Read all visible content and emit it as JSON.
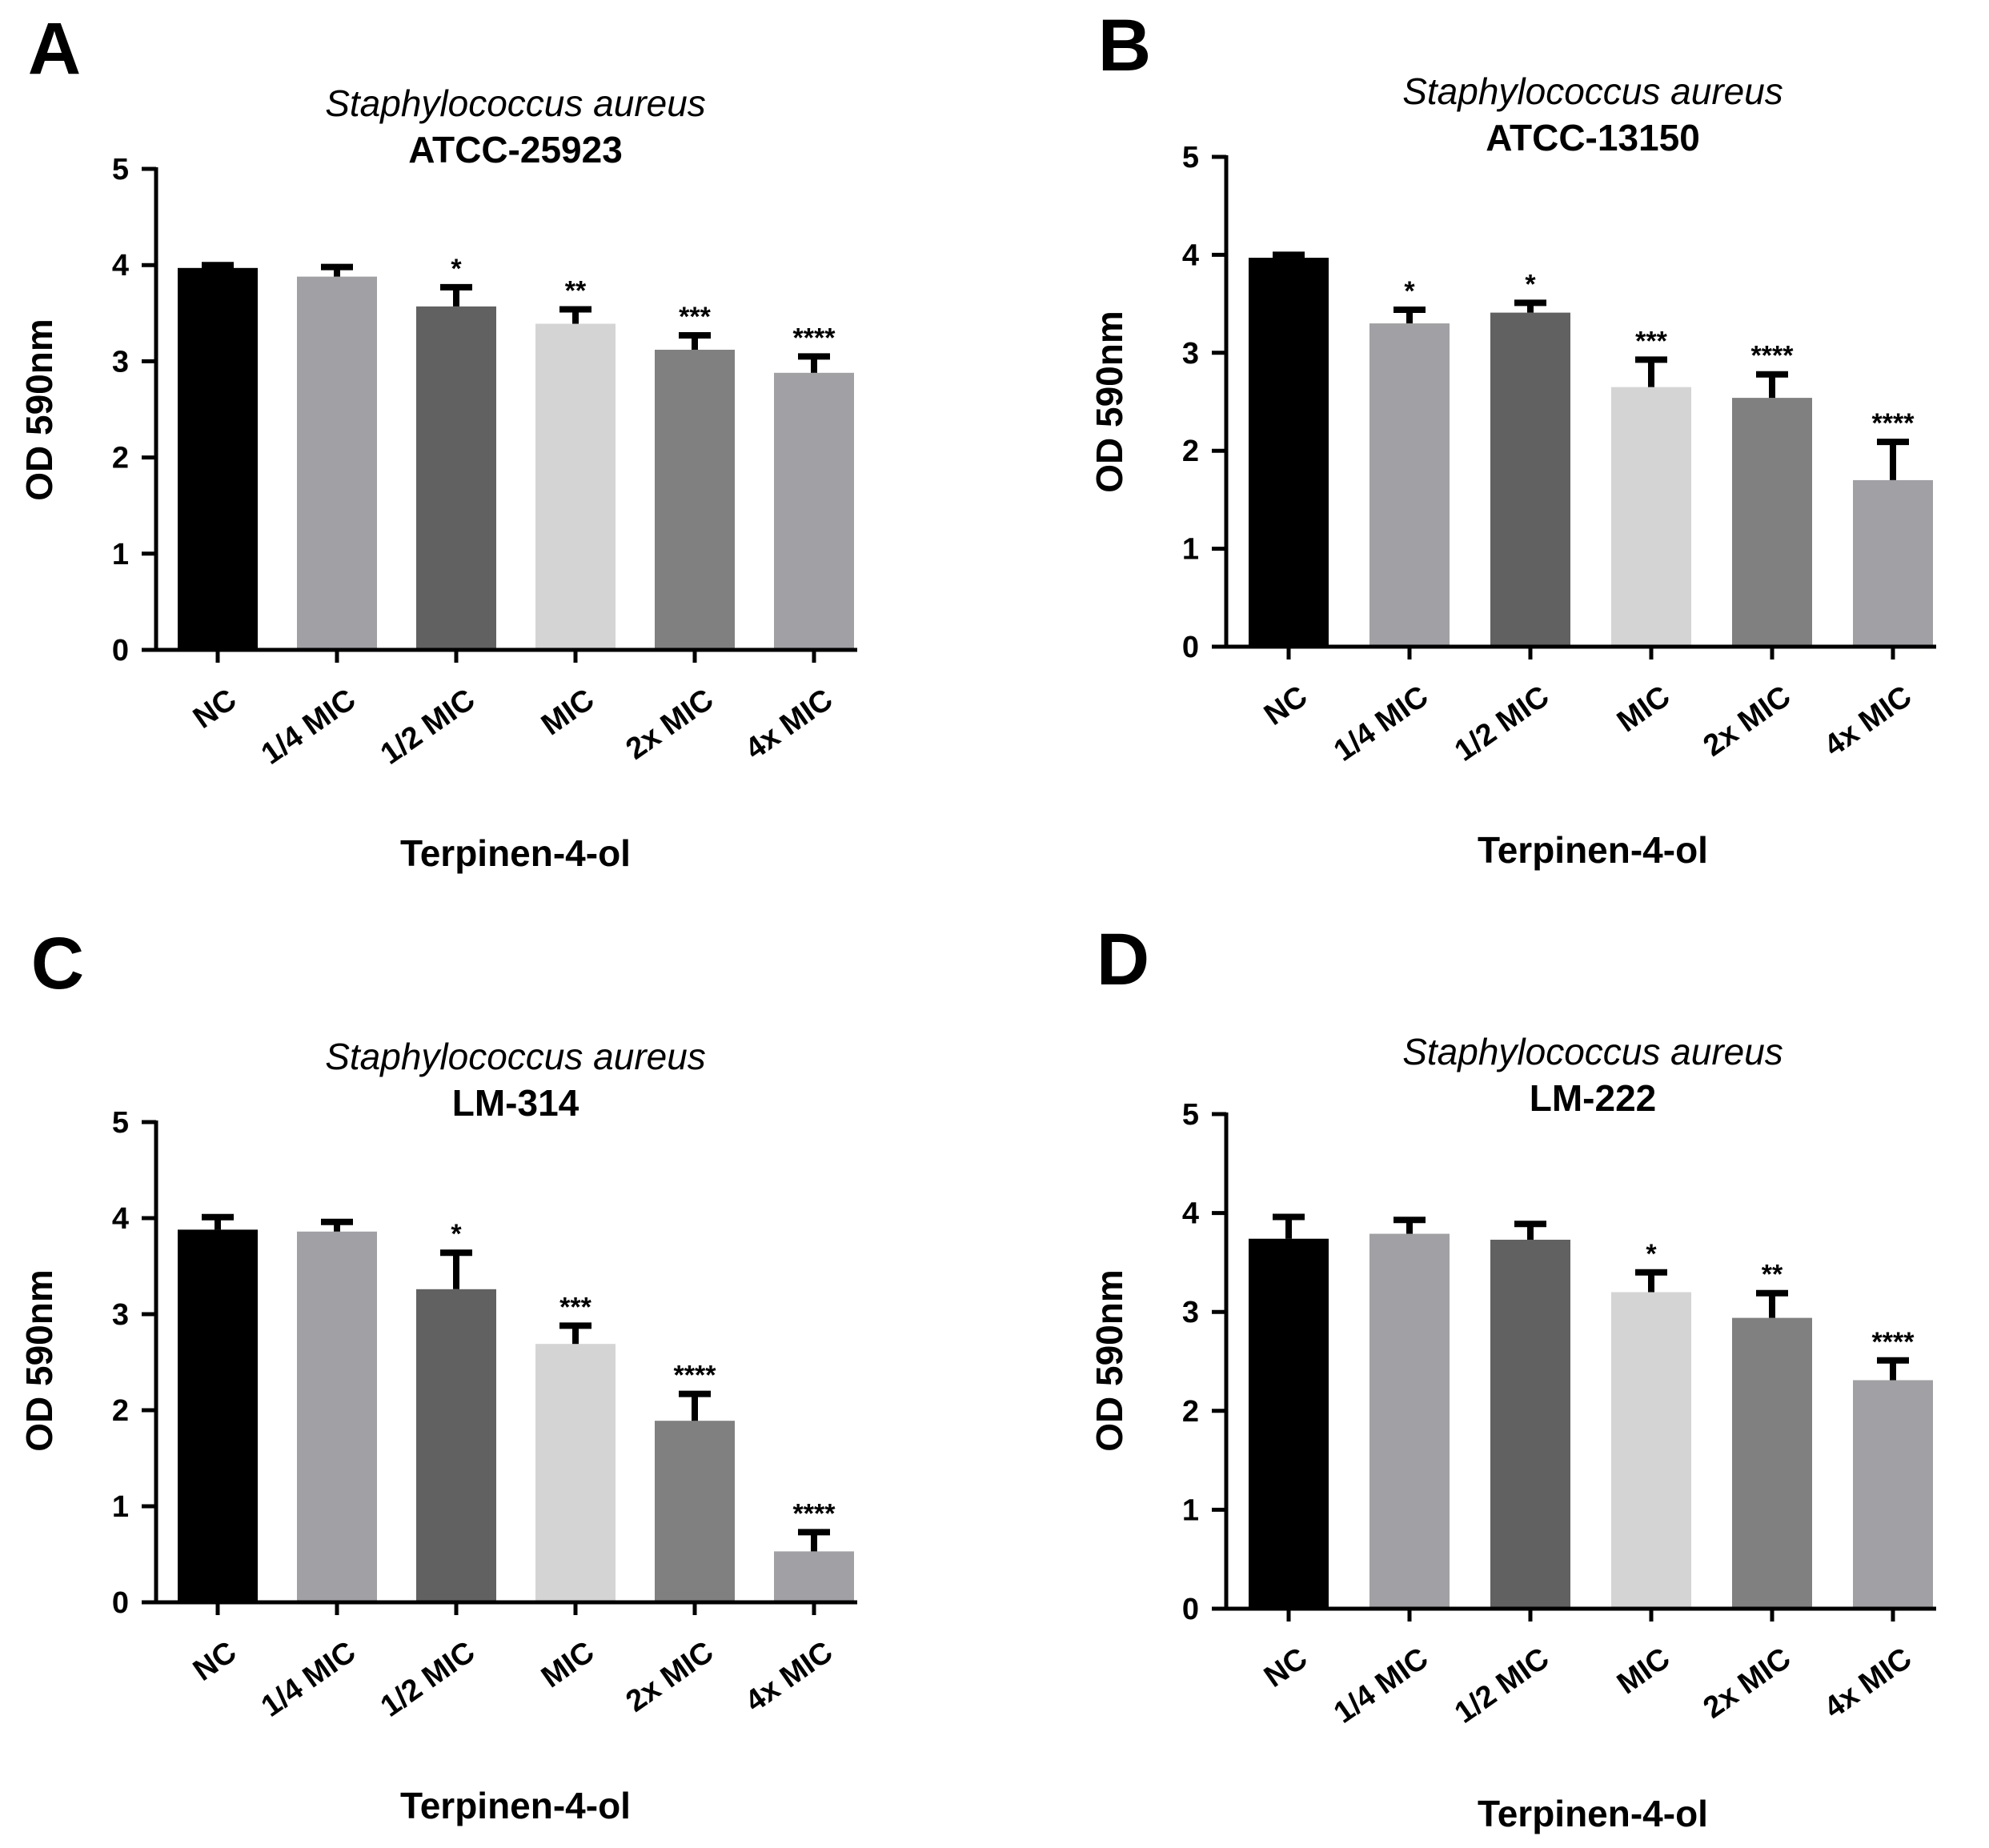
{
  "figure": {
    "panel_letters": [
      "A",
      "B",
      "C",
      "D"
    ]
  },
  "chart_data": [
    {
      "panel": "A",
      "type": "bar",
      "title": "Staphylococcus aureus",
      "subtitle": "ATCC-25923",
      "xlabel": "Terpinen-4-ol",
      "ylabel": "OD 590nm",
      "ylim": [
        0,
        5
      ],
      "yticks": [
        "0",
        "1",
        "2",
        "3",
        "4",
        "5"
      ],
      "categories": [
        "NC",
        "1/4 MIC",
        "1/2 MIC",
        "MIC",
        "2x MIC",
        "4x MIC"
      ],
      "values": [
        3.97,
        3.88,
        3.57,
        3.39,
        3.12,
        2.88
      ],
      "errors": [
        0.03,
        0.1,
        0.2,
        0.15,
        0.15,
        0.17
      ],
      "significance": [
        "",
        "",
        "*",
        "**",
        "***",
        "****"
      ],
      "colors": [
        "#000000",
        "#a0a0a5",
        "#616161",
        "#d4d4d4",
        "#808080",
        "#a0a0a5"
      ]
    },
    {
      "panel": "B",
      "type": "bar",
      "title": "Staphylococcus aureus",
      "subtitle": "ATCC-13150",
      "xlabel": "Terpinen-4-ol",
      "ylabel": "OD 590nm",
      "ylim": [
        0,
        5
      ],
      "yticks": [
        "0",
        "1",
        "2",
        "3",
        "4",
        "5"
      ],
      "categories": [
        "NC",
        "1/4 MIC",
        "1/2 MIC",
        "MIC",
        "2x MIC",
        "4x MIC"
      ],
      "values": [
        3.97,
        3.3,
        3.41,
        2.65,
        2.54,
        1.7
      ],
      "errors": [
        0.03,
        0.14,
        0.1,
        0.28,
        0.24,
        0.39
      ],
      "significance": [
        "",
        "*",
        "*",
        "***",
        "****",
        "****"
      ],
      "colors": [
        "#000000",
        "#a0a0a5",
        "#616161",
        "#d4d4d4",
        "#808080",
        "#a0a0a5"
      ]
    },
    {
      "panel": "C",
      "type": "bar",
      "title": "Staphylococcus aureus",
      "subtitle": "LM-314",
      "xlabel": "Terpinen-4-ol",
      "ylabel": "OD 590nm",
      "ylim": [
        0,
        5
      ],
      "yticks": [
        "0",
        "1",
        "2",
        "3",
        "4",
        "5"
      ],
      "categories": [
        "NC",
        "1/4 MIC",
        "1/2 MIC",
        "MIC",
        "2x MIC",
        "4x MIC"
      ],
      "values": [
        3.88,
        3.86,
        3.26,
        2.69,
        1.89,
        0.53
      ],
      "errors": [
        0.13,
        0.1,
        0.38,
        0.19,
        0.28,
        0.2
      ],
      "significance": [
        "",
        "",
        "*",
        "***",
        "****",
        "****"
      ],
      "colors": [
        "#000000",
        "#a0a0a5",
        "#616161",
        "#d4d4d4",
        "#808080",
        "#a0a0a5"
      ]
    },
    {
      "panel": "D",
      "type": "bar",
      "title": "Staphylococcus aureus",
      "subtitle": "LM-222",
      "xlabel": "Terpinen-4-ol",
      "ylabel": "OD 590nm",
      "ylim": [
        0,
        5
      ],
      "yticks": [
        "0",
        "1",
        "2",
        "3",
        "4",
        "5"
      ],
      "categories": [
        "NC",
        "1/4 MIC",
        "1/2 MIC",
        "MIC",
        "2x MIC",
        "4x MIC"
      ],
      "values": [
        3.74,
        3.79,
        3.73,
        3.2,
        2.94,
        2.31
      ],
      "errors": [
        0.22,
        0.14,
        0.16,
        0.2,
        0.25,
        0.2
      ],
      "significance": [
        "",
        "",
        "",
        "*",
        "**",
        "****"
      ],
      "colors": [
        "#000000",
        "#a0a0a5",
        "#616161",
        "#d4d4d4",
        "#808080",
        "#a0a0a5"
      ]
    }
  ]
}
